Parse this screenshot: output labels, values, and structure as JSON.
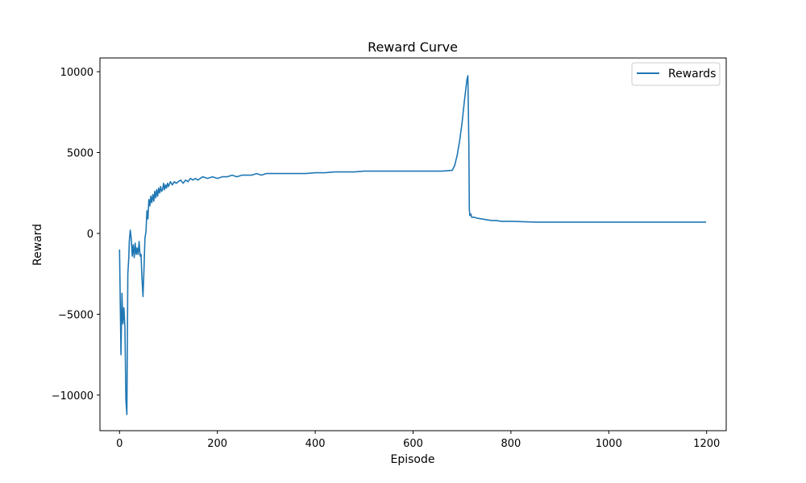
{
  "chart_data": {
    "type": "line",
    "title": "Reward Curve",
    "xlabel": "Episode",
    "ylabel": "Reward",
    "xlim": [
      -40,
      1240
    ],
    "ylim": [
      -12200,
      10850
    ],
    "xticks": [
      0,
      200,
      400,
      600,
      800,
      1000,
      1200
    ],
    "yticks": [
      -10000,
      -5000,
      0,
      5000,
      10000
    ],
    "ytick_labels": [
      "−10000",
      "−5000",
      "0",
      "5000",
      "10000"
    ],
    "legend": {
      "position": "top-right"
    },
    "grid": false,
    "series": [
      {
        "name": "Rewards",
        "color": "#1f77b4",
        "x": [
          0,
          2,
          3,
          5,
          7,
          9,
          11,
          13,
          15,
          17,
          19,
          20,
          22,
          24,
          26,
          28,
          30,
          32,
          34,
          36,
          38,
          40,
          42,
          44,
          46,
          48,
          50,
          52,
          54,
          56,
          58,
          60,
          62,
          64,
          66,
          68,
          70,
          72,
          74,
          76,
          78,
          80,
          82,
          84,
          86,
          88,
          90,
          92,
          94,
          96,
          98,
          100,
          104,
          108,
          112,
          116,
          120,
          125,
          130,
          135,
          140,
          145,
          150,
          155,
          160,
          170,
          180,
          190,
          200,
          210,
          220,
          230,
          240,
          250,
          260,
          270,
          280,
          290,
          300,
          320,
          340,
          360,
          380,
          400,
          420,
          440,
          460,
          480,
          500,
          520,
          540,
          560,
          580,
          600,
          620,
          640,
          660,
          680,
          685,
          690,
          695,
          700,
          705,
          710,
          712,
          714,
          715,
          716,
          718,
          720,
          725,
          730,
          740,
          750,
          760,
          770,
          780,
          790,
          800,
          850,
          900,
          950,
          1000,
          1050,
          1100,
          1150,
          1199
        ],
        "values": [
          -1000,
          -5300,
          -7500,
          -3700,
          -5600,
          -4600,
          -5800,
          -10300,
          -11200,
          -2500,
          -1500,
          -500,
          200,
          -300,
          -1400,
          -700,
          -1500,
          -600,
          -1300,
          -900,
          -1300,
          -500,
          -1400,
          -1300,
          -2800,
          -3900,
          -2300,
          -300,
          100,
          1400,
          900,
          2100,
          1700,
          2300,
          1900,
          2400,
          2000,
          2600,
          2200,
          2700,
          2300,
          2800,
          2500,
          2900,
          2600,
          2700,
          3100,
          2700,
          3000,
          2800,
          3100,
          2900,
          3200,
          3000,
          3200,
          3100,
          3200,
          3300,
          3100,
          3300,
          3200,
          3400,
          3300,
          3400,
          3300,
          3500,
          3400,
          3500,
          3400,
          3500,
          3500,
          3600,
          3500,
          3600,
          3600,
          3600,
          3700,
          3600,
          3700,
          3700,
          3700,
          3700,
          3700,
          3750,
          3750,
          3800,
          3800,
          3800,
          3850,
          3850,
          3850,
          3850,
          3850,
          3850,
          3850,
          3850,
          3850,
          3900,
          4200,
          4800,
          5700,
          6800,
          8200,
          9500,
          9750,
          5500,
          1500,
          1100,
          1200,
          1000,
          1000,
          950,
          900,
          850,
          800,
          800,
          750,
          750,
          750,
          700,
          700,
          700,
          700,
          700,
          700,
          700,
          700
        ]
      }
    ]
  }
}
